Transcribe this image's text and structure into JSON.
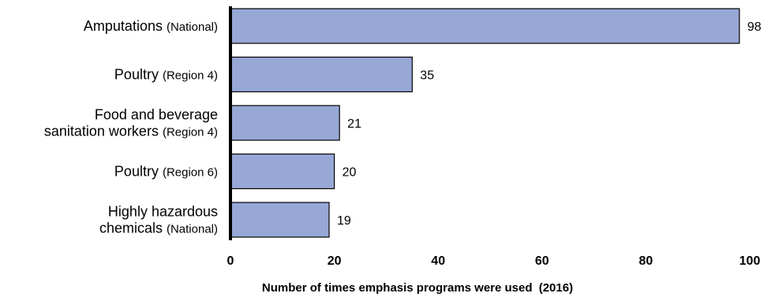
{
  "chart_data": {
    "type": "bar",
    "orientation": "horizontal",
    "categories": [
      {
        "lines": [
          {
            "main": "Amputations",
            "sub": "(National)"
          }
        ]
      },
      {
        "lines": [
          {
            "main": "Poultry",
            "sub": "(Region 4)"
          }
        ]
      },
      {
        "lines": [
          {
            "main": "Food and beverage",
            "sub": ""
          },
          {
            "main": "sanitation workers",
            "sub": "(Region 4)"
          }
        ]
      },
      {
        "lines": [
          {
            "main": "Poultry",
            "sub": "(Region 6)"
          }
        ]
      },
      {
        "lines": [
          {
            "main": "Highly hazardous",
            "sub": ""
          },
          {
            "main": "chemicals",
            "sub": "(National)"
          }
        ]
      }
    ],
    "values": [
      98,
      35,
      21,
      20,
      19
    ],
    "data_labels": [
      "98",
      "35",
      "21",
      "20",
      "19"
    ],
    "xlim": [
      0,
      100
    ],
    "x_ticks": [
      0,
      20,
      40,
      60,
      80,
      100
    ],
    "xlabel": {
      "bold": "Number of times emphasis programs were used",
      "normal": "(2016)"
    },
    "bar_color": "#97a8d6",
    "bar_border": "#000000",
    "grid": false
  }
}
